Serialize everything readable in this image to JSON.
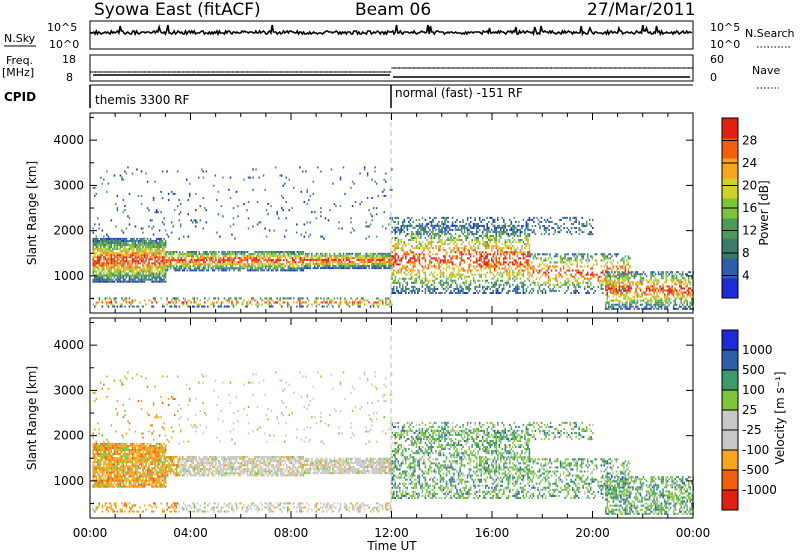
{
  "header": {
    "station": "Syowa East (fitACF)",
    "beam": "Beam 06",
    "date": "27/Mar/2011"
  },
  "top_strips": {
    "nsky_label": "N.Sky",
    "nsky_ticks": [
      "10^5",
      "10^0"
    ],
    "nsearch_label": "N.Search",
    "nsearch_ticks": [
      "10^5",
      "10^0"
    ],
    "freq_label_1": "Freq.",
    "freq_label_2": "[MHz]",
    "freq_ticks": [
      "18",
      "8"
    ],
    "nave_label": "Nave",
    "nave_ticks": [
      "60",
      "0"
    ],
    "cpid_label": "CPID",
    "cpid_segments": [
      {
        "label": "themis 3300 RF",
        "start_hour": 0
      },
      {
        "label": "normal (fast) -151 RF",
        "start_hour": 12
      }
    ]
  },
  "colors": {
    "power_scale": [
      "#1f2bd6",
      "#2f5ea8",
      "#3d7a6a",
      "#4a9a5a",
      "#7cc43a",
      "#cfd22a",
      "#f7a51c",
      "#f06010",
      "#e02010"
    ],
    "velocity_scale": [
      "#e02010",
      "#f06010",
      "#f7a51c",
      "#c8c8c8",
      "#c8c8c8",
      "#7cc43a",
      "#3d9a6a",
      "#2f5ea8",
      "#1f2bd6"
    ]
  },
  "chart_data": [
    {
      "type": "heatmap",
      "title": "Power",
      "xlabel": "",
      "ylabel": "Slant Range [km]",
      "xlim": [
        0,
        24
      ],
      "ylim": [
        180,
        4600
      ],
      "x_ticks": [
        "00:00",
        "04:00",
        "08:00",
        "12:00",
        "16:00",
        "20:00",
        "00:00"
      ],
      "y_ticks": [
        "1000",
        "2000",
        "3000",
        "4000"
      ],
      "colorbar_label": "Power [dB]",
      "colorbar_ticks": [
        "4",
        "8",
        "12",
        "16",
        "20",
        "24",
        "28"
      ],
      "colorbar_range": [
        0,
        32
      ]
    },
    {
      "type": "heatmap",
      "title": "Velocity",
      "xlabel": "Time UT",
      "ylabel": "Slant Range [km]",
      "xlim": [
        0,
        24
      ],
      "ylim": [
        180,
        4600
      ],
      "x_ticks": [
        "00:00",
        "04:00",
        "08:00",
        "12:00",
        "16:00",
        "20:00",
        "00:00"
      ],
      "y_ticks": [
        "1000",
        "2000",
        "3000",
        "4000"
      ],
      "colorbar_label": "Velocity [m s⁻¹]",
      "colorbar_ticks": [
        "-1000",
        "-500",
        "-100",
        "-25",
        "25",
        "100",
        "500",
        "1000"
      ]
    }
  ]
}
